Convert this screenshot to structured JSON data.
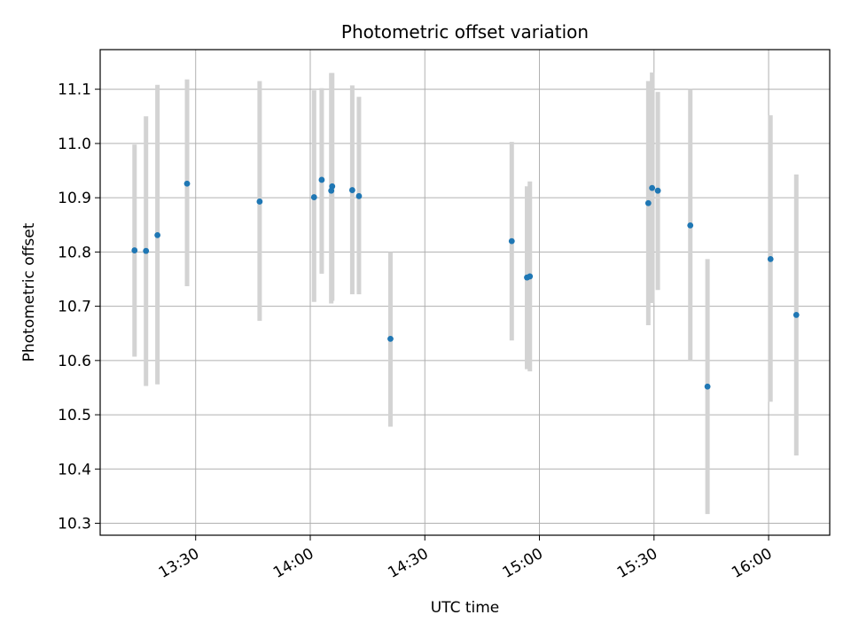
{
  "chart_data": {
    "type": "scatter",
    "title": "Photometric offset variation",
    "xlabel": "UTC time",
    "ylabel": "Photometric offset",
    "x_axis": "time",
    "xlim": [
      "13:05",
      "16:16"
    ],
    "ylim": [
      10.278,
      11.173
    ],
    "xticks": [
      "13:30",
      "14:00",
      "14:30",
      "15:00",
      "15:30",
      "16:00"
    ],
    "yticks": [
      10.3,
      10.4,
      10.5,
      10.6,
      10.7,
      10.8,
      10.9,
      11.0,
      11.1
    ],
    "ytick_labels": [
      "10.3",
      "10.4",
      "10.5",
      "10.6",
      "10.7",
      "10.8",
      "10.9",
      "11.0",
      "11.1"
    ],
    "grid": true,
    "legend": null,
    "point_color": "#1f77b4",
    "errorbar_color": "#d3d3d3",
    "points": [
      {
        "t": "13:14:00",
        "y": 10.803,
        "low": 10.607,
        "high": 10.998
      },
      {
        "t": "13:17:00",
        "y": 10.802,
        "low": 10.553,
        "high": 11.05
      },
      {
        "t": "13:20:00",
        "y": 10.831,
        "low": 10.556,
        "high": 11.108
      },
      {
        "t": "13:27:45",
        "y": 10.926,
        "low": 10.737,
        "high": 11.118
      },
      {
        "t": "13:46:45",
        "y": 10.893,
        "low": 10.673,
        "high": 11.115
      },
      {
        "t": "14:01:00",
        "y": 10.901,
        "low": 10.708,
        "high": 11.098
      },
      {
        "t": "14:03:00",
        "y": 10.933,
        "low": 10.76,
        "high": 11.102
      },
      {
        "t": "14:05:30",
        "y": 10.913,
        "low": 10.705,
        "high": 11.13
      },
      {
        "t": "14:05:45",
        "y": 10.921,
        "low": 10.71,
        "high": 11.13
      },
      {
        "t": "14:11:00",
        "y": 10.914,
        "low": 10.722,
        "high": 11.107
      },
      {
        "t": "14:12:45",
        "y": 10.903,
        "low": 10.722,
        "high": 11.086
      },
      {
        "t": "14:21:00",
        "y": 10.64,
        "low": 10.478,
        "high": 10.8
      },
      {
        "t": "14:52:45",
        "y": 10.82,
        "low": 10.637,
        "high": 11.003
      },
      {
        "t": "14:56:45",
        "y": 10.753,
        "low": 10.584,
        "high": 10.921
      },
      {
        "t": "14:57:30",
        "y": 10.755,
        "low": 10.58,
        "high": 10.93
      },
      {
        "t": "15:28:30",
        "y": 10.89,
        "low": 10.665,
        "high": 11.115
      },
      {
        "t": "15:29:30",
        "y": 10.918,
        "low": 10.706,
        "high": 11.131
      },
      {
        "t": "15:31:00",
        "y": 10.913,
        "low": 10.73,
        "high": 11.095
      },
      {
        "t": "15:39:30",
        "y": 10.849,
        "low": 10.6,
        "high": 11.1
      },
      {
        "t": "15:44:00",
        "y": 10.552,
        "low": 10.317,
        "high": 10.787
      },
      {
        "t": "16:00:30",
        "y": 10.787,
        "low": 10.524,
        "high": 11.052
      },
      {
        "t": "16:07:15",
        "y": 10.684,
        "low": 10.425,
        "high": 10.943
      }
    ]
  }
}
